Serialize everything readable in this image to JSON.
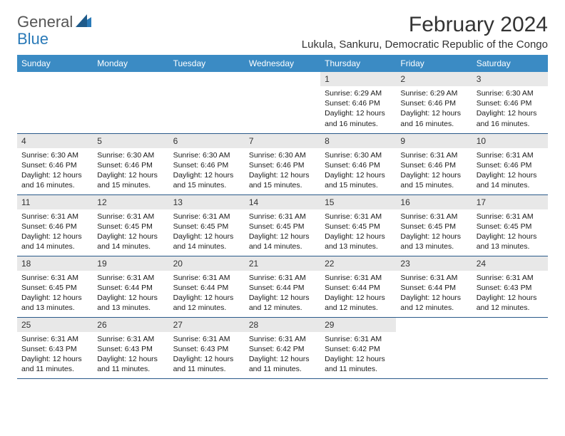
{
  "logo": {
    "text1": "General",
    "text2": "Blue",
    "color1": "#6b6b6b",
    "color2": "#2a7ab8"
  },
  "title": "February 2024",
  "location": "Lukula, Sankuru, Democratic Republic of the Congo",
  "header_bg": "#3b8bc4",
  "daynum_bg": "#e8e8e8",
  "row_border": "#2a5a8a",
  "weekdays": [
    "Sunday",
    "Monday",
    "Tuesday",
    "Wednesday",
    "Thursday",
    "Friday",
    "Saturday"
  ],
  "weeks": [
    [
      null,
      null,
      null,
      null,
      {
        "n": "1",
        "sr": "6:29 AM",
        "ss": "6:46 PM",
        "dl": "12 hours and 16 minutes."
      },
      {
        "n": "2",
        "sr": "6:29 AM",
        "ss": "6:46 PM",
        "dl": "12 hours and 16 minutes."
      },
      {
        "n": "3",
        "sr": "6:30 AM",
        "ss": "6:46 PM",
        "dl": "12 hours and 16 minutes."
      }
    ],
    [
      {
        "n": "4",
        "sr": "6:30 AM",
        "ss": "6:46 PM",
        "dl": "12 hours and 16 minutes."
      },
      {
        "n": "5",
        "sr": "6:30 AM",
        "ss": "6:46 PM",
        "dl": "12 hours and 15 minutes."
      },
      {
        "n": "6",
        "sr": "6:30 AM",
        "ss": "6:46 PM",
        "dl": "12 hours and 15 minutes."
      },
      {
        "n": "7",
        "sr": "6:30 AM",
        "ss": "6:46 PM",
        "dl": "12 hours and 15 minutes."
      },
      {
        "n": "8",
        "sr": "6:30 AM",
        "ss": "6:46 PM",
        "dl": "12 hours and 15 minutes."
      },
      {
        "n": "9",
        "sr": "6:31 AM",
        "ss": "6:46 PM",
        "dl": "12 hours and 15 minutes."
      },
      {
        "n": "10",
        "sr": "6:31 AM",
        "ss": "6:46 PM",
        "dl": "12 hours and 14 minutes."
      }
    ],
    [
      {
        "n": "11",
        "sr": "6:31 AM",
        "ss": "6:46 PM",
        "dl": "12 hours and 14 minutes."
      },
      {
        "n": "12",
        "sr": "6:31 AM",
        "ss": "6:45 PM",
        "dl": "12 hours and 14 minutes."
      },
      {
        "n": "13",
        "sr": "6:31 AM",
        "ss": "6:45 PM",
        "dl": "12 hours and 14 minutes."
      },
      {
        "n": "14",
        "sr": "6:31 AM",
        "ss": "6:45 PM",
        "dl": "12 hours and 14 minutes."
      },
      {
        "n": "15",
        "sr": "6:31 AM",
        "ss": "6:45 PM",
        "dl": "12 hours and 13 minutes."
      },
      {
        "n": "16",
        "sr": "6:31 AM",
        "ss": "6:45 PM",
        "dl": "12 hours and 13 minutes."
      },
      {
        "n": "17",
        "sr": "6:31 AM",
        "ss": "6:45 PM",
        "dl": "12 hours and 13 minutes."
      }
    ],
    [
      {
        "n": "18",
        "sr": "6:31 AM",
        "ss": "6:45 PM",
        "dl": "12 hours and 13 minutes."
      },
      {
        "n": "19",
        "sr": "6:31 AM",
        "ss": "6:44 PM",
        "dl": "12 hours and 13 minutes."
      },
      {
        "n": "20",
        "sr": "6:31 AM",
        "ss": "6:44 PM",
        "dl": "12 hours and 12 minutes."
      },
      {
        "n": "21",
        "sr": "6:31 AM",
        "ss": "6:44 PM",
        "dl": "12 hours and 12 minutes."
      },
      {
        "n": "22",
        "sr": "6:31 AM",
        "ss": "6:44 PM",
        "dl": "12 hours and 12 minutes."
      },
      {
        "n": "23",
        "sr": "6:31 AM",
        "ss": "6:44 PM",
        "dl": "12 hours and 12 minutes."
      },
      {
        "n": "24",
        "sr": "6:31 AM",
        "ss": "6:43 PM",
        "dl": "12 hours and 12 minutes."
      }
    ],
    [
      {
        "n": "25",
        "sr": "6:31 AM",
        "ss": "6:43 PM",
        "dl": "12 hours and 11 minutes."
      },
      {
        "n": "26",
        "sr": "6:31 AM",
        "ss": "6:43 PM",
        "dl": "12 hours and 11 minutes."
      },
      {
        "n": "27",
        "sr": "6:31 AM",
        "ss": "6:43 PM",
        "dl": "12 hours and 11 minutes."
      },
      {
        "n": "28",
        "sr": "6:31 AM",
        "ss": "6:42 PM",
        "dl": "12 hours and 11 minutes."
      },
      {
        "n": "29",
        "sr": "6:31 AM",
        "ss": "6:42 PM",
        "dl": "12 hours and 11 minutes."
      },
      null,
      null
    ]
  ],
  "labels": {
    "sunrise": "Sunrise:",
    "sunset": "Sunset:",
    "daylight": "Daylight:"
  }
}
